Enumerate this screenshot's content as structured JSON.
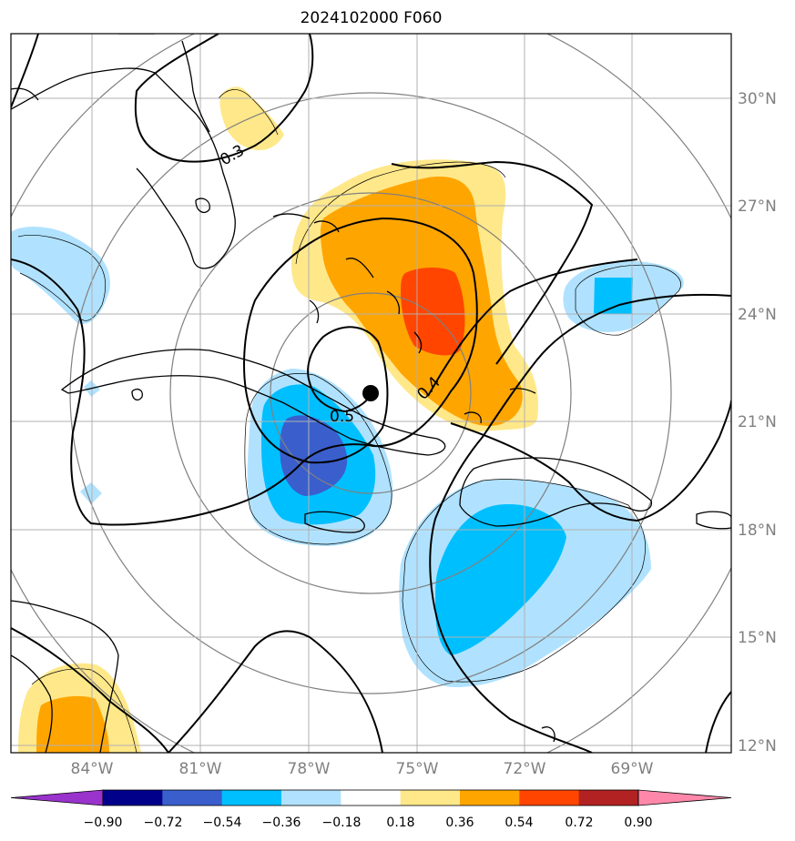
{
  "title": "2024102000 F060",
  "lat_labels": [
    "30°N",
    "27°N",
    "24°N",
    "21°N",
    "18°N",
    "15°N",
    "12°N"
  ],
  "lon_labels": [
    "84°W",
    "81°W",
    "78°W",
    "75°W",
    "72°W",
    "69°W"
  ],
  "colorbar": {
    "ticks": [
      "−0.90",
      "−0.72",
      "−0.54",
      "−0.36",
      "−0.18",
      "0.18",
      "0.36",
      "0.54",
      "0.72",
      "0.90"
    ],
    "colors": [
      "#9933cc",
      "#00008b",
      "#3a5fcd",
      "#00bfff",
      "#b0e2ff",
      "#ffffff",
      "#ffe88a",
      "#ffa500",
      "#ff4500",
      "#b22222",
      "#ff88aa"
    ]
  },
  "contour_labels": [
    "0.3",
    "0.4",
    "0.5"
  ],
  "center_marker": "storm-center"
}
